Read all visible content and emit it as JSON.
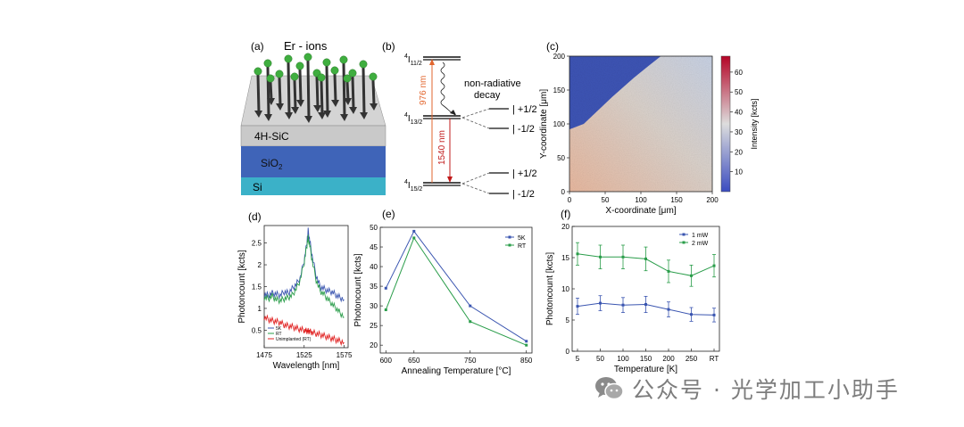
{
  "panels": {
    "a": {
      "label": "(a)",
      "ions_label": "Er - ions",
      "layers": [
        "4H-SiC",
        "SiO",
        "Si"
      ],
      "sio2_subscript": "2",
      "colors": {
        "ion": "#3fae3f",
        "sic": "#c9c9c9",
        "sio2": "#3f64b8",
        "si": "#3bb1c8"
      }
    },
    "b": {
      "label": "(b)",
      "levels": {
        "top": "I",
        "top_sub": "11/2",
        "mid": "I",
        "mid_sub": "13/2",
        "bot": "I",
        "bot_sub": "15/2",
        "sup": "4"
      },
      "arrow_976": "976 nm",
      "arrow_1540": "1540 nm",
      "nonrad": [
        "non-radiative",
        "decay"
      ],
      "splits": [
        "| +1/2",
        "| -1/2",
        "| +1/2",
        "| -1/2"
      ]
    },
    "c": {
      "label": "(c)",
      "xlabel": "X-coordinate [μm]",
      "ylabel": "Y-coordinate [μm]",
      "cbar_label": "Intensity [kcts]",
      "xticks": [
        "0",
        "50",
        "100",
        "150",
        "200"
      ],
      "yticks": [
        "0",
        "50",
        "100",
        "150",
        "200"
      ],
      "cbar_ticks": [
        "10",
        "20",
        "30",
        "40",
        "50",
        "60"
      ]
    },
    "d": {
      "label": "(d)",
      "xlabel": "Wavelength [nm]",
      "ylabel": "Photoncount [kcts]"
    },
    "e": {
      "label": "(e)",
      "xlabel": "Annealing Temperature [°C]",
      "ylabel": "Photoncount [kcts]"
    },
    "f": {
      "label": "(f)",
      "xlabel": "Temperature [K]",
      "ylabel": "Photoncount [kcts]"
    }
  },
  "watermark": {
    "text": "公众号 · 光学加工小助手",
    "icon": "wechat-icon"
  },
  "chart_data": [
    {
      "panel": "c",
      "type": "heatmap",
      "xlabel": "X-coordinate [μm]",
      "ylabel": "Y-coordinate [μm]",
      "xlim": [
        0,
        200
      ],
      "ylim": [
        0,
        200
      ],
      "colorbar": {
        "label": "Intensity [kcts]",
        "range": [
          0,
          68
        ],
        "ticks": [
          10,
          20,
          30,
          40,
          50,
          60
        ],
        "colors": [
          "#3b4cc0",
          "#dddddd",
          "#b40426"
        ]
      },
      "regions": [
        {
          "name": "implanted",
          "boundary": [
            [
              0,
              92
            ],
            [
              20,
              100
            ],
            [
              60,
              140
            ],
            [
              90,
              168
            ],
            [
              110,
              185
            ],
            [
              128,
              200
            ]
          ],
          "mean_intensity": 4
        },
        {
          "name": "unimplanted",
          "mean_intensity": 35
        }
      ]
    },
    {
      "panel": "d",
      "type": "line",
      "xlabel": "Wavelength [nm]",
      "ylabel": "Photoncount [kcts]",
      "xlim": [
        1475,
        1580
      ],
      "ylim": [
        0.1,
        2.9
      ],
      "xticks": [
        1475,
        1525,
        1575
      ],
      "yticks": [
        0.5,
        1,
        1.5,
        2,
        2.5
      ],
      "x": [
        1475,
        1480,
        1485,
        1490,
        1495,
        1500,
        1505,
        1510,
        1515,
        1520,
        1525,
        1528,
        1530,
        1532,
        1535,
        1540,
        1545,
        1550,
        1555,
        1560,
        1565,
        1570,
        1575
      ],
      "series": [
        {
          "name": "5K",
          "color": "#3a55b0",
          "values": [
            1.32,
            1.3,
            1.35,
            1.33,
            1.3,
            1.38,
            1.35,
            1.45,
            1.55,
            1.7,
            2.1,
            2.45,
            2.78,
            2.55,
            2.2,
            1.75,
            1.5,
            1.45,
            1.4,
            1.38,
            1.3,
            1.25,
            1.2
          ]
        },
        {
          "name": "RT",
          "color": "#2a9d4a",
          "values": [
            1.25,
            1.22,
            1.28,
            1.2,
            1.18,
            1.22,
            1.25,
            1.3,
            1.45,
            1.65,
            2.05,
            2.4,
            2.62,
            2.45,
            2.1,
            1.65,
            1.4,
            1.32,
            1.2,
            1.1,
            1.0,
            0.9,
            0.8
          ]
        },
        {
          "name": "Unimplanted (RT)",
          "color": "#e02020",
          "values": [
            0.8,
            0.75,
            0.72,
            0.7,
            0.68,
            0.62,
            0.6,
            0.58,
            0.55,
            0.52,
            0.5,
            0.48,
            0.48,
            0.47,
            0.45,
            0.42,
            0.4,
            0.37,
            0.34,
            0.31,
            0.28,
            0.25,
            0.22
          ]
        }
      ]
    },
    {
      "panel": "e",
      "type": "line",
      "xlabel": "Annealing Temperature [°C]",
      "ylabel": "Photoncount [kcts]",
      "xlim": [
        590,
        860
      ],
      "ylim": [
        18,
        50
      ],
      "xticks": [
        600,
        650,
        750,
        850
      ],
      "yticks": [
        20,
        25,
        30,
        35,
        40,
        45,
        50
      ],
      "x": [
        600,
        650,
        750,
        850
      ],
      "series": [
        {
          "name": "5K",
          "color": "#3a55b0",
          "values": [
            34.5,
            49,
            30,
            21
          ]
        },
        {
          "name": "RT",
          "color": "#2a9d4a",
          "values": [
            29,
            47.3,
            26,
            20
          ]
        }
      ]
    },
    {
      "panel": "f",
      "type": "line",
      "xlabel": "Temperature [K]",
      "ylabel": "Photoncount [kcts]",
      "ylim": [
        0,
        20
      ],
      "yticks": [
        0,
        5,
        10,
        15,
        20
      ],
      "categories": [
        "5",
        "50",
        "100",
        "150",
        "200",
        "250",
        "RT"
      ],
      "series": [
        {
          "name": "1 mW",
          "color": "#3a55b0",
          "values": [
            7.2,
            7.7,
            7.4,
            7.5,
            6.7,
            5.9,
            5.8
          ],
          "errors": [
            1.3,
            1.2,
            1.2,
            1.3,
            1.2,
            1.1,
            1.1
          ]
        },
        {
          "name": "2 mW",
          "color": "#2a9d4a",
          "values": [
            15.6,
            15.1,
            15.1,
            14.8,
            12.8,
            12.1,
            13.7
          ],
          "errors": [
            1.8,
            1.9,
            1.9,
            1.9,
            1.8,
            1.7,
            1.8
          ]
        }
      ]
    }
  ]
}
